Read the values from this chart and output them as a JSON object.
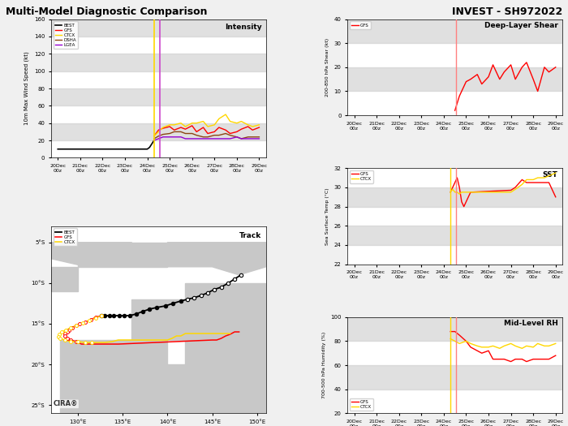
{
  "title_left": "Multi-Model Diagnostic Comparison",
  "title_right": "INVEST - SH972022",
  "intensity": {
    "ylabel": "10m Max Wind Speed (kt)",
    "ylim": [
      0,
      160
    ],
    "yticks": [
      0,
      20,
      40,
      60,
      80,
      100,
      120,
      140,
      160
    ],
    "label": "Intensity",
    "best_x": [
      0.0,
      0.5,
      1.0,
      1.5,
      2.0,
      2.5,
      3.0,
      3.5,
      3.8,
      4.0,
      4.1,
      4.2,
      4.25,
      4.3
    ],
    "best_y": [
      10,
      10,
      10,
      10,
      10,
      10,
      10,
      10,
      10,
      10,
      12,
      16,
      18,
      20
    ],
    "gfs_x": [
      4.3,
      4.5,
      4.7,
      5.0,
      5.2,
      5.5,
      5.7,
      6.0,
      6.2,
      6.5,
      6.7,
      7.0,
      7.2,
      7.5,
      7.7,
      8.0,
      8.2,
      8.5,
      8.7,
      9.0
    ],
    "gfs_y": [
      25,
      32,
      34,
      36,
      32,
      35,
      33,
      37,
      30,
      35,
      28,
      30,
      35,
      32,
      28,
      30,
      33,
      36,
      32,
      35
    ],
    "ctcx_x": [
      4.3,
      4.5,
      4.7,
      5.0,
      5.2,
      5.5,
      5.7,
      6.0,
      6.2,
      6.5,
      6.7,
      7.0,
      7.2,
      7.5,
      7.7,
      8.0,
      8.2,
      8.5,
      8.7,
      9.0
    ],
    "ctcx_y": [
      25,
      30,
      35,
      38,
      38,
      40,
      36,
      40,
      40,
      42,
      36,
      38,
      45,
      50,
      42,
      40,
      42,
      38,
      36,
      38
    ],
    "dsha_x": [
      4.3,
      4.5,
      4.7,
      5.0,
      5.2,
      5.5,
      5.7,
      6.0,
      6.2,
      6.5,
      6.7,
      7.0,
      7.2,
      7.5,
      7.7,
      8.0,
      8.2,
      8.5,
      8.7,
      9.0
    ],
    "dsha_y": [
      22,
      25,
      27,
      28,
      30,
      30,
      28,
      28,
      26,
      24,
      24,
      26,
      26,
      28,
      26,
      24,
      22,
      24,
      24,
      24
    ],
    "lgea_x": [
      4.3,
      4.5,
      4.7,
      5.0,
      5.2,
      5.5,
      5.7,
      6.0,
      6.2,
      6.5,
      6.7,
      7.0,
      7.2,
      7.5,
      7.7,
      8.0,
      8.2,
      8.5,
      8.7,
      9.0
    ],
    "lgea_y": [
      20,
      22,
      24,
      24,
      24,
      24,
      22,
      22,
      22,
      22,
      22,
      22,
      22,
      22,
      22,
      24,
      22,
      22,
      22,
      22
    ],
    "vline1_x": 4.3,
    "vline2_x": 4.55,
    "vline1_color": "#ffd700",
    "vline2_color": "#cc44cc",
    "xticks": [
      0,
      1,
      2,
      3,
      4,
      5,
      6,
      7,
      8,
      9
    ],
    "xticklabels": [
      "20Dec\n00z",
      "21Dec\n00z",
      "22Dec\n00z",
      "23Dec\n00z",
      "24Dec\n00z",
      "25Dec\n00z",
      "26Dec\n00z",
      "27Dec\n00z",
      "28Dec\n00z",
      "29Dec\n00z"
    ]
  },
  "shear": {
    "ylabel": "200-850 hPa Shear (kt)",
    "ylim": [
      0,
      40
    ],
    "yticks": [
      0,
      10,
      20,
      30,
      40
    ],
    "label": "Deep-Layer Shear",
    "gfs_x": [
      4.5,
      4.7,
      5.0,
      5.2,
      5.5,
      5.7,
      6.0,
      6.2,
      6.5,
      6.7,
      7.0,
      7.2,
      7.5,
      7.7,
      8.0,
      8.2,
      8.5,
      8.7,
      9.0
    ],
    "gfs_y": [
      2,
      8,
      14,
      15,
      17,
      13,
      16,
      21,
      15,
      18,
      21,
      15,
      20,
      22,
      15,
      10,
      20,
      18,
      20
    ],
    "vline_x": 4.55,
    "vline_color": "#ff8080",
    "xticks": [
      0,
      1,
      2,
      3,
      4,
      5,
      6,
      7,
      8,
      9
    ],
    "xticklabels": [
      "20Dec\n00z",
      "21Dec\n00z",
      "22Dec\n00z",
      "23Dec\n00z",
      "24Dec\n00z",
      "25Dec\n00z",
      "26Dec\n00z",
      "27Dec\n00z",
      "28Dec\n00z",
      "29Dec\n00z"
    ]
  },
  "sst": {
    "ylabel": "Sea Surface Temp (°C)",
    "ylim": [
      22,
      32
    ],
    "yticks": [
      22,
      24,
      26,
      28,
      30,
      32
    ],
    "label": "SST",
    "gfs_x": [
      4.3,
      4.5,
      4.6,
      4.7,
      4.8,
      4.9,
      5.0,
      5.1,
      5.2,
      7.0,
      7.2,
      7.5,
      7.7,
      8.0,
      8.2,
      8.5,
      8.7,
      9.0
    ],
    "gfs_y": [
      29.5,
      30.5,
      31.0,
      30.0,
      28.5,
      28.0,
      28.5,
      29.0,
      29.5,
      29.7,
      30.0,
      30.8,
      30.5,
      30.5,
      30.5,
      30.5,
      30.5,
      29.0
    ],
    "ctcx_x": [
      4.3,
      4.4,
      4.5,
      4.6,
      4.7,
      4.8,
      4.9,
      5.0,
      5.1,
      5.2,
      7.0,
      7.2,
      7.5,
      7.7,
      8.0,
      8.2,
      8.5,
      8.7,
      9.0
    ],
    "ctcx_y": [
      29.5,
      29.8,
      29.5,
      29.5,
      29.3,
      29.5,
      29.5,
      29.5,
      29.5,
      29.5,
      29.5,
      29.8,
      30.3,
      30.8,
      30.8,
      31.0,
      31.0,
      31.2,
      31.5
    ],
    "vline1_x": 4.3,
    "vline1_color": "#ffd700",
    "vline2_x": 4.55,
    "vline2_color": "#ff8080",
    "xticks": [
      0,
      1,
      2,
      3,
      4,
      5,
      6,
      7,
      8,
      9
    ],
    "xticklabels": [
      "20Dec\n00z",
      "21Dec\n00z",
      "22Dec\n00z",
      "23Dec\n00z",
      "24Dec\n00z",
      "25Dec\n00z",
      "26Dec\n00z",
      "27Dec\n00z",
      "28Dec\n00z",
      "29Dec\n00z"
    ]
  },
  "rh": {
    "ylabel": "700-500 hPa Humidity (%)",
    "ylim": [
      20,
      100
    ],
    "yticks": [
      20,
      40,
      60,
      80,
      100
    ],
    "label": "Mid-Level RH",
    "gfs_x": [
      4.3,
      4.5,
      4.7,
      5.0,
      5.2,
      5.5,
      5.7,
      6.0,
      6.2,
      6.5,
      6.7,
      7.0,
      7.2,
      7.5,
      7.7,
      8.0,
      8.2,
      8.5,
      8.7,
      9.0
    ],
    "gfs_y": [
      88,
      88,
      85,
      80,
      75,
      72,
      70,
      72,
      65,
      65,
      65,
      63,
      65,
      65,
      63,
      65,
      65,
      65,
      65,
      68
    ],
    "ctcx_x": [
      4.3,
      4.5,
      4.7,
      5.0,
      5.2,
      5.5,
      5.7,
      6.0,
      6.2,
      6.5,
      6.7,
      7.0,
      7.2,
      7.5,
      7.7,
      8.0,
      8.2,
      8.5,
      8.7,
      9.0
    ],
    "ctcx_y": [
      82,
      80,
      78,
      80,
      78,
      76,
      75,
      75,
      76,
      74,
      76,
      78,
      76,
      74,
      76,
      75,
      78,
      76,
      76,
      78
    ],
    "vline1_x": 4.3,
    "vline1_color": "#ffd700",
    "vline2_x": 4.55,
    "vline2_color": "#ff8080",
    "xticks": [
      0,
      1,
      2,
      3,
      4,
      5,
      6,
      7,
      8,
      9
    ],
    "xticklabels": [
      "20Dec\n00z",
      "21Dec\n00z",
      "22Dec\n00z",
      "23Dec\n00z",
      "24Dec\n00z",
      "25Dec\n00z",
      "26Dec\n00z",
      "27Dec\n00z",
      "28Dec\n00z",
      "29Dec\n00z"
    ]
  },
  "track": {
    "label": "Track",
    "xlim": [
      127,
      151
    ],
    "ylim": [
      -26,
      -3
    ],
    "xlabel_ticks": [
      130,
      135,
      140,
      145,
      150
    ],
    "xlabel_labels": [
      "130°E",
      "135°E",
      "140°E",
      "145°E",
      "150°E"
    ],
    "ylabel_ticks": [
      -25,
      -20,
      -15,
      -10,
      -5
    ],
    "ylabel_labels": [
      "25°S",
      "20°S",
      "15°S",
      "10°S",
      "5°S"
    ],
    "best_lons": [
      148.2,
      147.5,
      146.8,
      146.0,
      145.2,
      144.5,
      143.8,
      143.0,
      142.2,
      141.5,
      140.6,
      139.8,
      138.8,
      138.0,
      137.2,
      136.5,
      135.8,
      135.2,
      134.6,
      134.0,
      133.5,
      133.0,
      132.6
    ],
    "best_lats": [
      -9.0,
      -9.5,
      -10.0,
      -10.5,
      -10.8,
      -11.2,
      -11.5,
      -11.8,
      -12.0,
      -12.2,
      -12.5,
      -12.8,
      -13.0,
      -13.2,
      -13.5,
      -13.8,
      -14.0,
      -14.0,
      -14.0,
      -14.0,
      -14.0,
      -14.0,
      -14.0
    ],
    "gfs_lons": [
      132.6,
      132.0,
      131.4,
      130.8,
      130.2,
      129.8,
      129.4,
      129.0,
      128.8,
      128.5,
      128.5,
      128.8,
      129.2,
      129.8,
      130.4,
      131.0,
      131.6,
      132.0,
      132.5,
      133.0,
      133.5,
      134.0,
      134.5,
      145.0,
      145.5,
      146.0,
      146.5,
      147.0,
      147.5,
      148.0
    ],
    "gfs_lats": [
      -14.0,
      -14.2,
      -14.5,
      -14.8,
      -15.0,
      -15.2,
      -15.5,
      -15.8,
      -16.0,
      -16.2,
      -16.5,
      -16.8,
      -17.0,
      -17.2,
      -17.5,
      -17.5,
      -17.5,
      -17.5,
      -17.5,
      -17.5,
      -17.5,
      -17.5,
      -17.5,
      -17.0,
      -17.0,
      -16.8,
      -16.5,
      -16.3,
      -16.0,
      -16.0
    ],
    "ctcx_lons": [
      132.6,
      132.0,
      131.3,
      130.5,
      129.8,
      129.2,
      128.6,
      128.2,
      127.9,
      127.8,
      128.0,
      128.5,
      129.2,
      130.0,
      130.8,
      131.5,
      132.2,
      133.0,
      133.8,
      134.5,
      135.2,
      136.0,
      136.8,
      137.5,
      138.2,
      138.8,
      139.5,
      140.0,
      140.5,
      141.0,
      141.5,
      142.0,
      142.5,
      143.0,
      143.5,
      144.0,
      144.5,
      145.0,
      145.5,
      146.0,
      146.5,
      147.0
    ],
    "ctcx_lats": [
      -14.0,
      -14.3,
      -14.6,
      -14.9,
      -15.2,
      -15.5,
      -15.8,
      -16.0,
      -16.3,
      -16.6,
      -16.8,
      -17.0,
      -17.2,
      -17.2,
      -17.3,
      -17.3,
      -17.3,
      -17.3,
      -17.2,
      -17.0,
      -17.0,
      -17.0,
      -17.0,
      -17.0,
      -17.0,
      -17.0,
      -17.0,
      -17.0,
      -16.8,
      -16.5,
      -16.5,
      -16.2,
      -16.2,
      -16.2,
      -16.2,
      -16.2,
      -16.2,
      -16.2,
      -16.2,
      -16.2,
      -16.2,
      -16.2
    ],
    "best_dots_lons": [
      148.2,
      147.5,
      146.8,
      146.0,
      145.2,
      144.5,
      143.8,
      143.0,
      142.2,
      141.5,
      140.6,
      139.8,
      138.8,
      138.0,
      137.2,
      136.5,
      135.8,
      135.2,
      134.6,
      134.0,
      133.5,
      133.0,
      132.6
    ],
    "best_dots_lats": [
      -9.0,
      -9.5,
      -10.0,
      -10.5,
      -10.8,
      -11.2,
      -11.5,
      -11.8,
      -12.0,
      -12.2,
      -12.5,
      -12.8,
      -13.0,
      -13.2,
      -13.5,
      -13.8,
      -14.0,
      -14.0,
      -14.0,
      -14.0,
      -14.0,
      -14.0,
      -14.0
    ],
    "best_open_lons": [
      148.2,
      147.5,
      146.8,
      146.0,
      145.2,
      144.5,
      143.8,
      143.0,
      142.2
    ],
    "best_open_lats": [
      -9.0,
      -9.5,
      -10.0,
      -10.5,
      -10.8,
      -11.2,
      -11.5,
      -11.8,
      -12.0
    ],
    "best_filled_lons": [
      141.5,
      140.6,
      139.8,
      138.8,
      138.0,
      137.2,
      136.5,
      135.8,
      135.2,
      134.6,
      134.0,
      133.5,
      133.0,
      132.6
    ],
    "best_filled_lats": [
      -12.2,
      -12.5,
      -12.8,
      -13.0,
      -13.2,
      -13.5,
      -13.8,
      -14.0,
      -14.0,
      -14.0,
      -14.0,
      -14.0,
      -14.0,
      -14.0
    ],
    "gfs_dots_lons": [
      132.6,
      132.0,
      131.4,
      130.8,
      130.2,
      129.8,
      129.4,
      129.0,
      128.8,
      128.5,
      128.5,
      128.8,
      129.2,
      129.8
    ],
    "gfs_dots_lats": [
      -14.0,
      -14.2,
      -14.5,
      -14.8,
      -15.0,
      -15.2,
      -15.5,
      -15.8,
      -16.0,
      -16.2,
      -16.5,
      -16.8,
      -17.0,
      -17.2
    ],
    "ctcx_dots_lons": [
      132.6,
      132.0,
      131.3,
      130.5,
      129.8,
      129.2,
      128.6,
      128.2,
      127.9,
      127.8,
      128.0,
      128.5,
      129.2,
      130.0,
      130.8,
      131.5
    ],
    "ctcx_dots_lats": [
      -14.0,
      -14.3,
      -14.6,
      -14.9,
      -15.2,
      -15.5,
      -15.8,
      -16.0,
      -16.3,
      -16.6,
      -16.8,
      -17.0,
      -17.2,
      -17.2,
      -17.3,
      -17.3
    ]
  },
  "colors": {
    "best": "#000000",
    "gfs": "#ff0000",
    "ctcx": "#ffd700",
    "dsha": "#8b4513",
    "lgea": "#9400d3",
    "ocean": "#b0c4d8",
    "land": "#c8c8c8"
  },
  "stripe_color": "#cccccc",
  "stripe_alpha": 0.6
}
